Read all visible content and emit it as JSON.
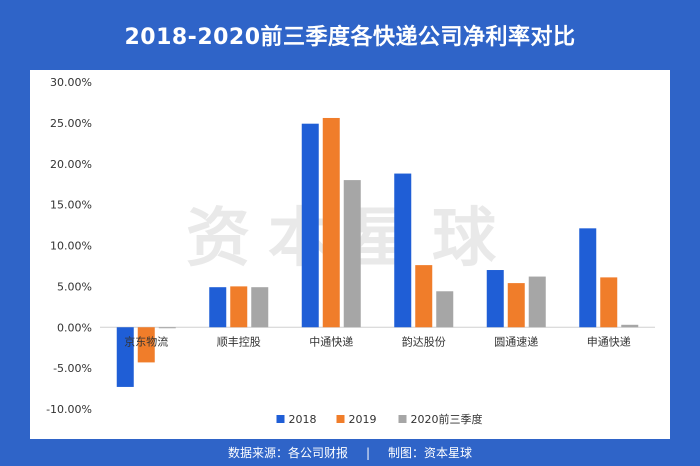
{
  "header": {
    "title": "2018-2020前三季度各快递公司净利率对比"
  },
  "footer": {
    "source": "数据来源：各公司财报",
    "separator": "|",
    "maker": "制图：资本星球"
  },
  "watermark": "资本星球",
  "chart_data": {
    "type": "bar",
    "title": "2018-2020前三季度各快递公司净利率对比",
    "categories": [
      "京东物流",
      "顺丰控股",
      "中通快递",
      "韵达股份",
      "圆通速递",
      "申通快递"
    ],
    "series": [
      {
        "name": "2018",
        "color": "#1f5ed6",
        "values": [
          -7.3,
          4.9,
          24.9,
          18.8,
          7.0,
          12.1
        ]
      },
      {
        "name": "2019",
        "color": "#f07d2a",
        "values": [
          -4.3,
          5.0,
          25.6,
          7.6,
          5.4,
          6.1
        ]
      },
      {
        "name": "2020前三季度",
        "color": "#a6a6a6",
        "values": [
          -0.1,
          4.9,
          18.0,
          4.4,
          6.2,
          0.3
        ]
      }
    ],
    "yticks": [
      "30.00%",
      "25.00%",
      "20.00%",
      "15.00%",
      "10.00%",
      "5.00%",
      "0.00%",
      "-5.00%",
      "-10.00%"
    ],
    "ylim": [
      -10,
      30
    ],
    "legend_position": "bottom",
    "grid": false
  }
}
